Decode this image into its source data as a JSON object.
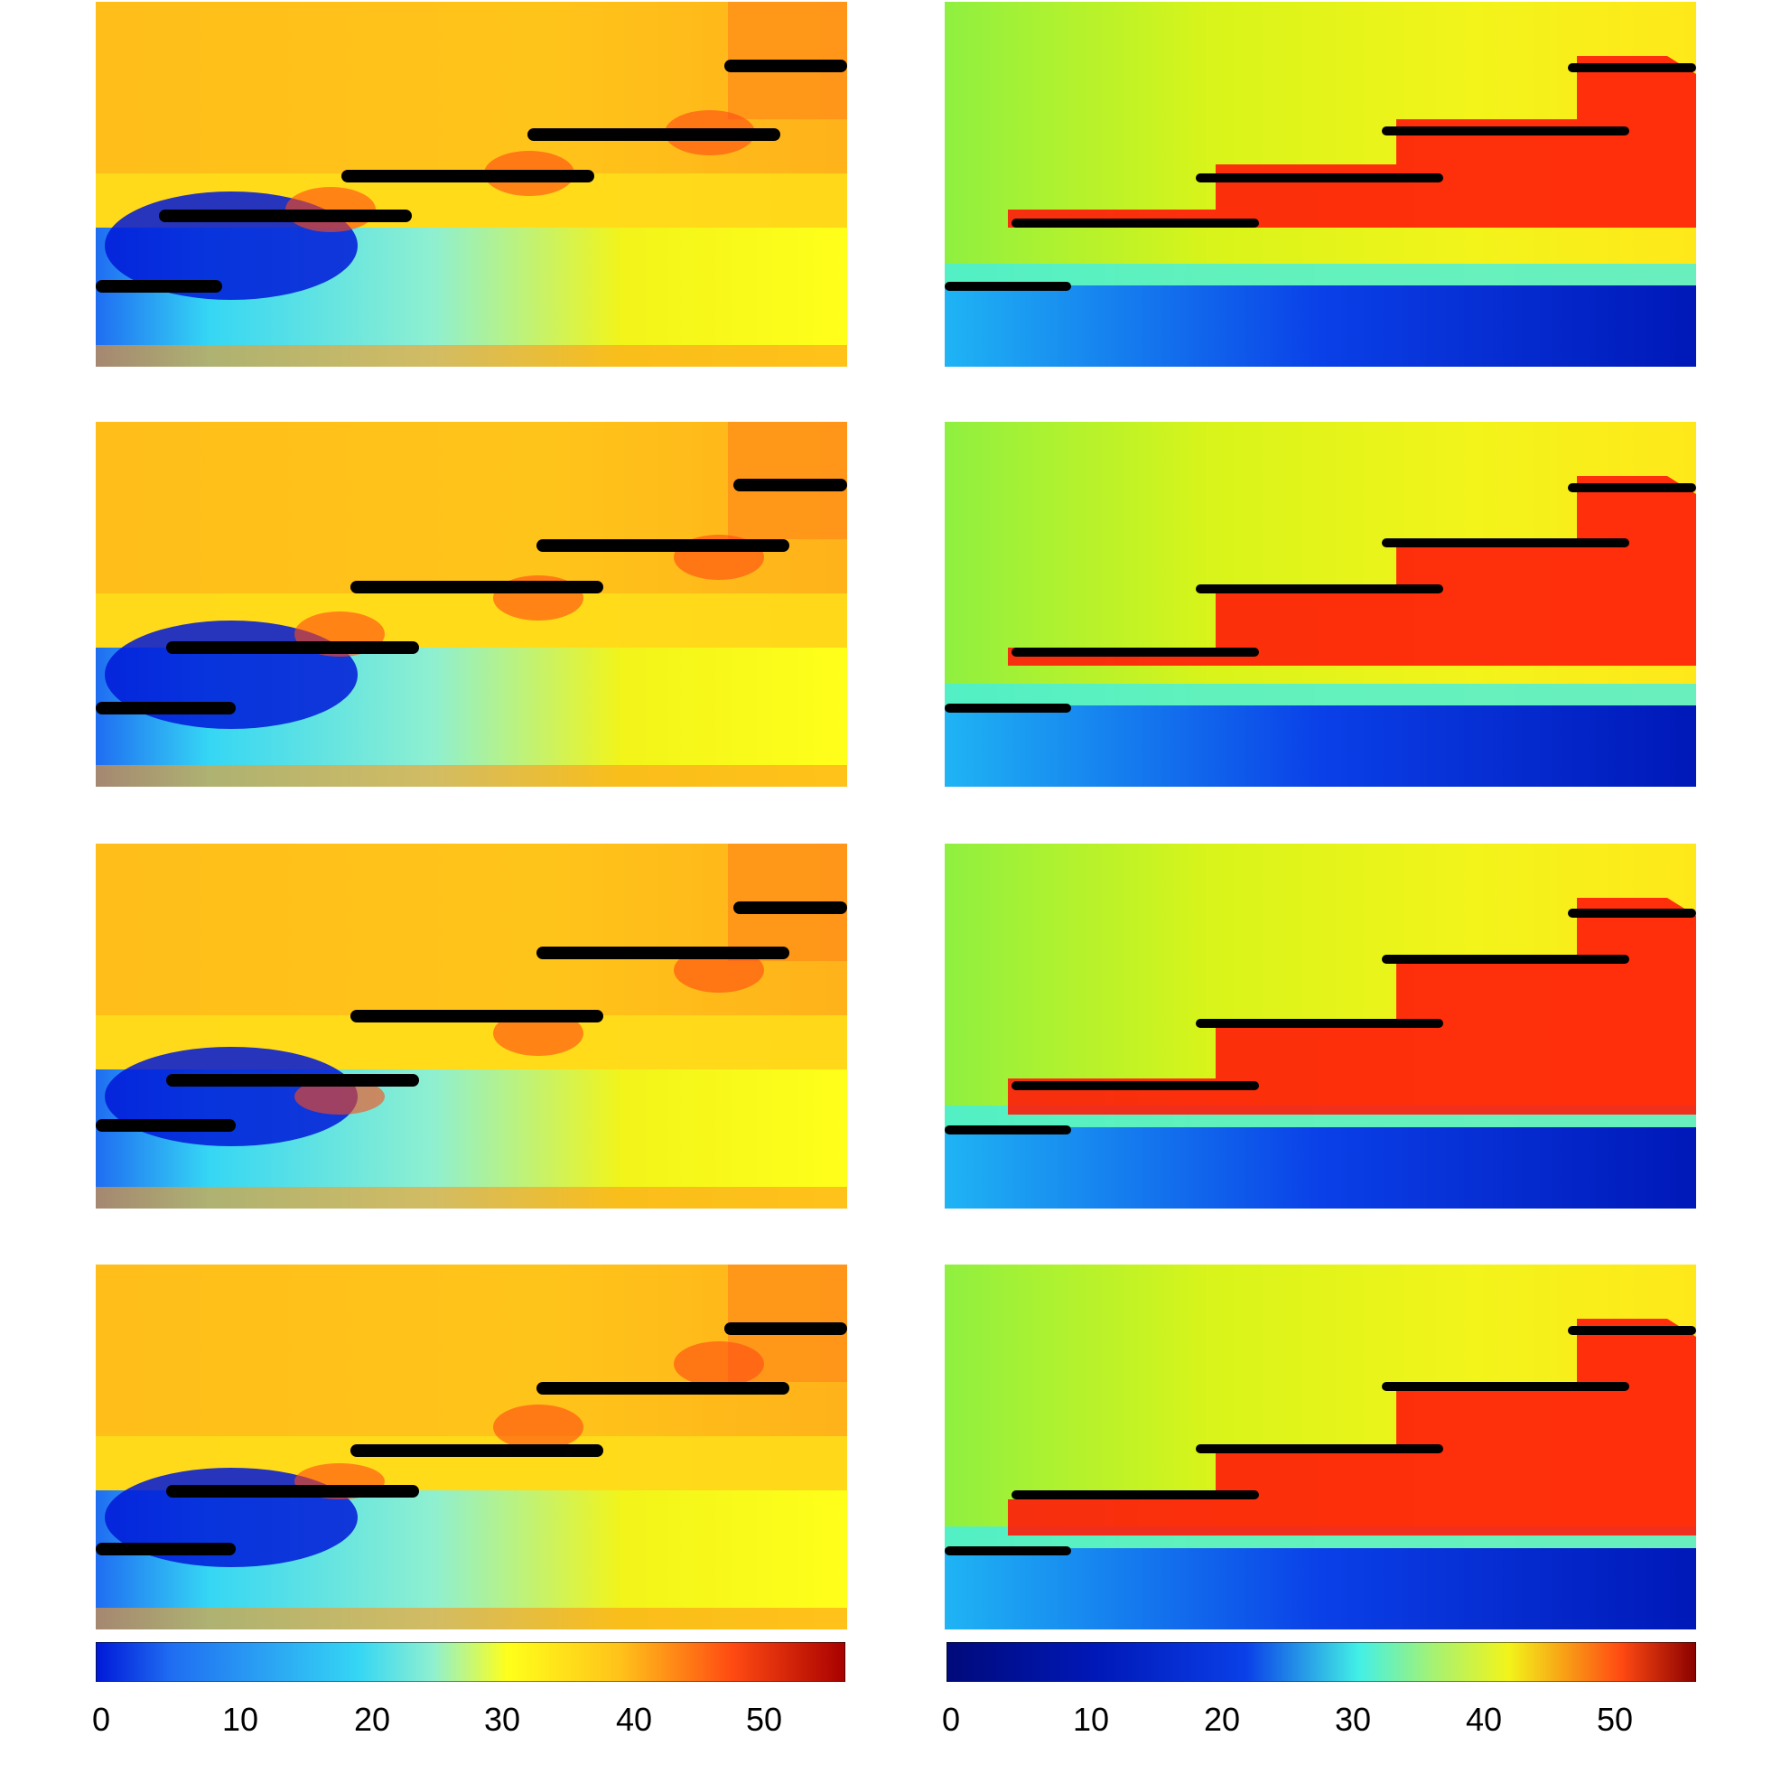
{
  "figure": {
    "rows": 4,
    "columns": [
      "left",
      "right"
    ],
    "plate_count": 5
  },
  "colormaps": {
    "left": [
      "#0018d8",
      "#1f6df2",
      "#35d6f4",
      "#8ff0d0",
      "#d8f560",
      "#ffff1a",
      "#ffd21a",
      "#ff9a1a",
      "#ff4a12",
      "#ff1a0a",
      "#a80000"
    ],
    "right": [
      "#000a7a",
      "#0018b8",
      "#0a40e8",
      "#1fb4f4",
      "#42f0e6",
      "#a6f272",
      "#f2f41a",
      "#ffc81a",
      "#ff6a12",
      "#ff1a0a",
      "#8a0000"
    ]
  },
  "colorbars": {
    "left": {
      "ticks": [
        "0",
        "10",
        "20",
        "30",
        "40",
        "50"
      ],
      "min": 0,
      "max": 55
    },
    "right": {
      "ticks": [
        "0",
        "10",
        "20",
        "30",
        "40",
        "50"
      ],
      "min": 0,
      "max": 55
    }
  }
}
